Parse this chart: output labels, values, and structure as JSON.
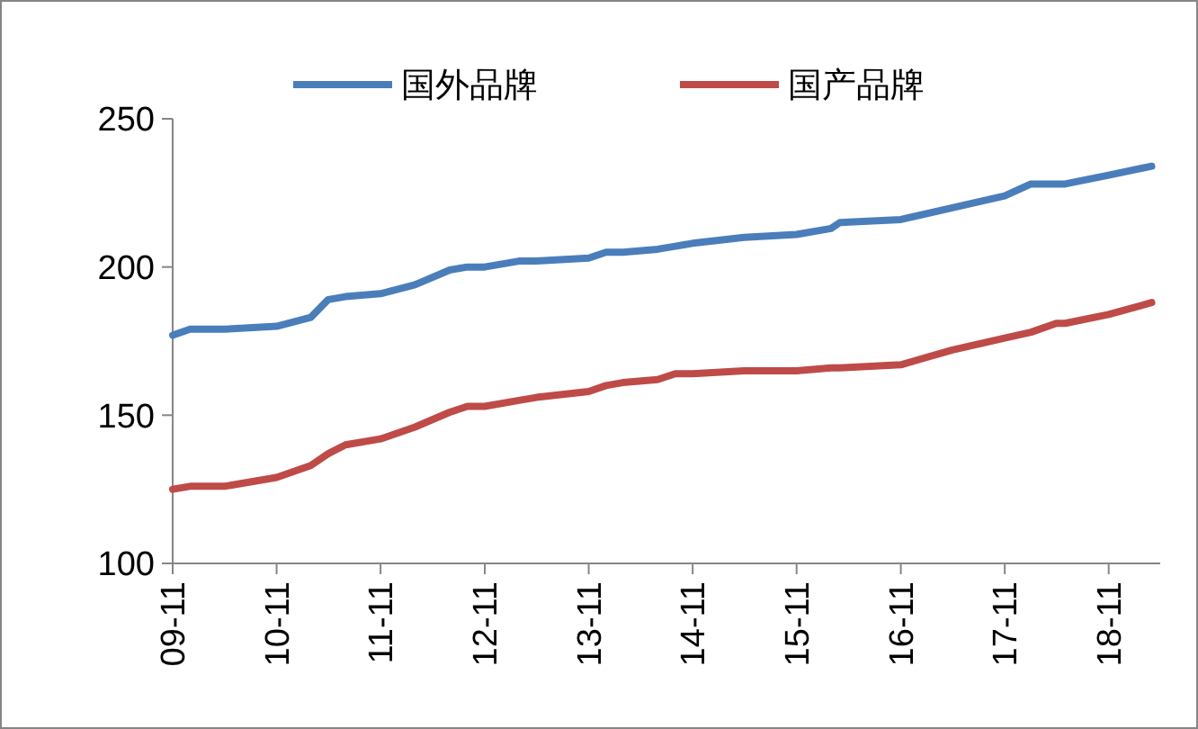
{
  "chart_data": {
    "type": "line",
    "legend": "top",
    "grid": false,
    "marker": "none",
    "line_style": "solid",
    "xlim": [
      "2009-11",
      "2019-05"
    ],
    "xticks": [
      {
        "value": "2009-11",
        "label": "09-11"
      },
      {
        "value": "2010-11",
        "label": "10-11"
      },
      {
        "value": "2011-11",
        "label": "11-11"
      },
      {
        "value": "2012-11",
        "label": "12-11"
      },
      {
        "value": "2013-11",
        "label": "13-11"
      },
      {
        "value": "2014-11",
        "label": "14-11"
      },
      {
        "value": "2015-11",
        "label": "15-11"
      },
      {
        "value": "2016-11",
        "label": "16-11"
      },
      {
        "value": "2017-11",
        "label": "17-11"
      },
      {
        "value": "2018-11",
        "label": "18-11"
      }
    ],
    "ylim": [
      100,
      250
    ],
    "yticks": [
      100,
      150,
      200,
      250
    ],
    "x": [
      "2009-11",
      "2010-01",
      "2010-05",
      "2010-11",
      "2011-03",
      "2011-05",
      "2011-07",
      "2011-11",
      "2012-03",
      "2012-07",
      "2012-09",
      "2012-11",
      "2013-03",
      "2013-05",
      "2013-11",
      "2014-01",
      "2014-03",
      "2014-07",
      "2014-09",
      "2014-11",
      "2015-05",
      "2015-11",
      "2016-03",
      "2016-04",
      "2016-11",
      "2017-05",
      "2017-11",
      "2018-02",
      "2018-05",
      "2018-06",
      "2018-11",
      "2019-04"
    ],
    "series": [
      {
        "name": "国外品牌",
        "color": "#4a7ebb",
        "values": [
          177,
          179,
          179,
          180,
          183,
          189,
          190,
          191,
          194,
          199,
          200,
          200,
          202,
          202,
          203,
          205,
          205,
          206,
          207,
          208,
          210,
          211,
          213,
          215,
          216,
          220,
          224,
          228,
          228,
          228,
          231,
          234
        ]
      },
      {
        "name": "国产品牌",
        "color": "#be4b48",
        "values": [
          125,
          126,
          126,
          129,
          133,
          137,
          140,
          142,
          146,
          151,
          153,
          153,
          155,
          156,
          158,
          160,
          161,
          162,
          164,
          164,
          165,
          165,
          166,
          166,
          167,
          172,
          176,
          178,
          181,
          181,
          184,
          188
        ]
      }
    ]
  }
}
